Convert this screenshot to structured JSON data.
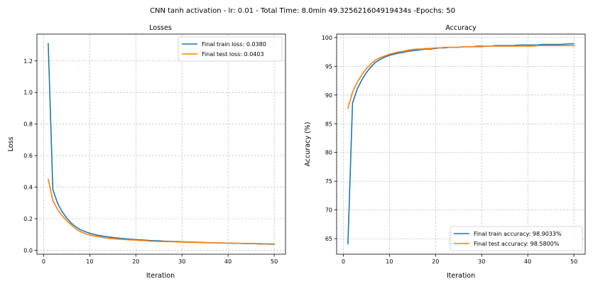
{
  "figure": {
    "title": "CNN tanh activation - lr: 0.01 - Total Time: 8.0min 49.325621604919434s -Epochs: 50"
  },
  "chart_data": [
    {
      "type": "line",
      "title": "Losses",
      "xlabel": "Iteration",
      "ylabel": "Loss",
      "xlim": [
        -1.45,
        52.45
      ],
      "ylim": [
        -0.025,
        1.37
      ],
      "xticks": [
        0,
        10,
        20,
        30,
        40,
        50
      ],
      "yticks": [
        0.0,
        0.2,
        0.4,
        0.6,
        0.8,
        1.0,
        1.2
      ],
      "ytick_labels": [
        "0.0",
        "0.2",
        "0.4",
        "0.6",
        "0.8",
        "1.0",
        "1.2"
      ],
      "grid": true,
      "legend_position": "top-right",
      "x": [
        1,
        2,
        3,
        4,
        5,
        6,
        7,
        8,
        9,
        10,
        11,
        12,
        13,
        14,
        15,
        16,
        17,
        18,
        19,
        20,
        21,
        22,
        23,
        24,
        25,
        26,
        27,
        28,
        29,
        30,
        31,
        32,
        33,
        34,
        35,
        36,
        37,
        38,
        39,
        40,
        41,
        42,
        43,
        44,
        45,
        46,
        47,
        48,
        49,
        50
      ],
      "series": [
        {
          "name": "Final train loss: 0.0380",
          "color": "#1f77b4",
          "values": [
            1.31,
            0.385,
            0.3,
            0.245,
            0.205,
            0.172,
            0.148,
            0.13,
            0.118,
            0.108,
            0.1,
            0.094,
            0.089,
            0.085,
            0.081,
            0.078,
            0.075,
            0.072,
            0.07,
            0.068,
            0.066,
            0.064,
            0.062,
            0.061,
            0.06,
            0.058,
            0.057,
            0.056,
            0.055,
            0.054,
            0.053,
            0.052,
            0.051,
            0.05,
            0.049,
            0.048,
            0.047,
            0.047,
            0.046,
            0.045,
            0.044,
            0.044,
            0.043,
            0.042,
            0.042,
            0.041,
            0.04,
            0.04,
            0.039,
            0.038
          ]
        },
        {
          "name": "Final test loss: 0.0403",
          "color": "#ff7f0e",
          "values": [
            0.45,
            0.315,
            0.26,
            0.22,
            0.188,
            0.16,
            0.135,
            0.118,
            0.105,
            0.097,
            0.09,
            0.086,
            0.08,
            0.076,
            0.073,
            0.071,
            0.069,
            0.067,
            0.066,
            0.064,
            0.062,
            0.061,
            0.058,
            0.057,
            0.056,
            0.055,
            0.055,
            0.054,
            0.053,
            0.052,
            0.051,
            0.05,
            0.05,
            0.049,
            0.048,
            0.048,
            0.047,
            0.047,
            0.046,
            0.045,
            0.045,
            0.044,
            0.044,
            0.043,
            0.043,
            0.042,
            0.042,
            0.041,
            0.041,
            0.0403
          ]
        }
      ]
    },
    {
      "type": "line",
      "title": "Accuracy",
      "xlabel": "Iteration",
      "ylabel": "Accuracy (%)",
      "xlim": [
        -1.45,
        52.45
      ],
      "ylim": [
        62.3,
        100.6
      ],
      "xticks": [
        0,
        10,
        20,
        30,
        40,
        50
      ],
      "yticks": [
        65,
        70,
        75,
        80,
        85,
        90,
        95,
        100
      ],
      "ytick_labels": [
        "65",
        "70",
        "75",
        "80",
        "85",
        "90",
        "95",
        "100"
      ],
      "grid": true,
      "legend_position": "bottom-right",
      "x": [
        1,
        2,
        3,
        4,
        5,
        6,
        7,
        8,
        9,
        10,
        11,
        12,
        13,
        14,
        15,
        16,
        17,
        18,
        19,
        20,
        21,
        22,
        23,
        24,
        25,
        26,
        27,
        28,
        29,
        30,
        31,
        32,
        33,
        34,
        35,
        36,
        37,
        38,
        39,
        40,
        41,
        42,
        43,
        44,
        45,
        46,
        47,
        48,
        49,
        50
      ],
      "series": [
        {
          "name": "Final train accuracy: 98.9033%",
          "color": "#1f77b4",
          "values": [
            64.1,
            88.6,
            91.0,
            92.6,
            93.9,
            94.9,
            95.7,
            96.2,
            96.6,
            96.9,
            97.1,
            97.3,
            97.4,
            97.6,
            97.7,
            97.8,
            97.9,
            98.0,
            98.0,
            98.1,
            98.2,
            98.2,
            98.3,
            98.3,
            98.3,
            98.4,
            98.4,
            98.4,
            98.5,
            98.5,
            98.5,
            98.5,
            98.6,
            98.6,
            98.6,
            98.6,
            98.6,
            98.7,
            98.7,
            98.7,
            98.7,
            98.7,
            98.8,
            98.8,
            98.8,
            98.8,
            98.8,
            98.85,
            98.9,
            98.9033
          ]
        },
        {
          "name": "Final test accuracy: 98.5800%",
          "color": "#ff7f0e",
          "values": [
            87.7,
            90.5,
            92.2,
            93.5,
            94.6,
            95.4,
            96.1,
            96.5,
            96.8,
            97.1,
            97.3,
            97.5,
            97.6,
            97.8,
            97.9,
            98.0,
            98.0,
            98.1,
            98.1,
            98.2,
            98.2,
            98.3,
            98.3,
            98.3,
            98.3,
            98.4,
            98.4,
            98.4,
            98.4,
            98.4,
            98.5,
            98.5,
            98.5,
            98.5,
            98.5,
            98.5,
            98.5,
            98.5,
            98.5,
            98.5,
            98.5,
            98.6,
            98.6,
            98.6,
            98.6,
            98.6,
            98.6,
            98.6,
            98.6,
            98.58
          ]
        }
      ]
    }
  ]
}
